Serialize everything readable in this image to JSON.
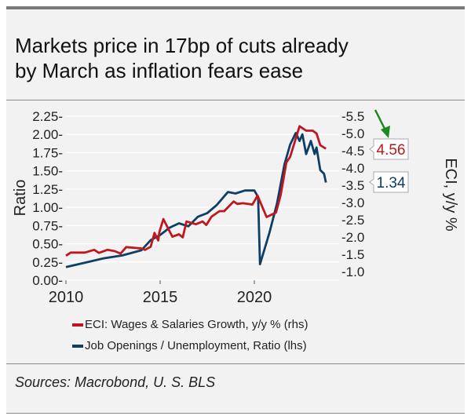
{
  "title_line1": "Markets price in 17bp of cuts already",
  "title_line2": "by March as inflation fears ease",
  "source": "Sources: Macrobond, U. S. BLS",
  "colors": {
    "eci": "#c0171f",
    "ratio": "#0d3e66",
    "arrow": "#1e8a1e",
    "background": "#f2f2f2"
  },
  "chart_data": {
    "type": "line",
    "title": "",
    "xlabel": "",
    "ylabel_left": "Ratio",
    "ylabel_right": "ECI, y/y %",
    "xlim": [
      2010,
      2024.5
    ],
    "x_ticks": [
      "2010",
      "2015",
      "2020"
    ],
    "ylim_left": [
      0,
      2.25
    ],
    "y_ticks_left": [
      "0.00",
      "0.25",
      "0.50",
      "0.75",
      "1.00",
      "1.25",
      "1.50",
      "1.75",
      "2.00",
      "2.25"
    ],
    "ylim_right": [
      0.75,
      5.5
    ],
    "y_ticks_right": [
      "1.0",
      "1.5",
      "2.0",
      "2.5",
      "3.0",
      "3.5",
      "4.0",
      "4.5",
      "5.0",
      "5.5"
    ],
    "grid": true,
    "legend_placement": "bottom",
    "series": [
      {
        "name": "ECI: Wages & Salaries Growth, y/y % (rhs)",
        "axis": "right",
        "last_label": "4.56",
        "x": [
          2010.0,
          2010.25,
          2011.0,
          2011.5,
          2011.75,
          2012.2,
          2012.6,
          2012.9,
          2013.2,
          2014.0,
          2014.5,
          2014.9,
          2015.1,
          2014.2,
          2014.7,
          2014.96,
          2015.17,
          2015.65,
          2016.0,
          2016.2,
          2016.4,
          2016.9,
          2017.25,
          2017.45,
          2017.73,
          2018.15,
          2018.4,
          2018.9,
          2019.1,
          2019.4,
          2019.9,
          2020.17,
          2020.65,
          2021.15,
          2021.4,
          2021.7,
          2021.9,
          2022.4,
          2022.75,
          2023.1,
          2023.3,
          2023.5,
          2023.7,
          2023.8
        ],
        "values": [
          1.46,
          1.55,
          1.55,
          1.63,
          1.54,
          1.63,
          1.59,
          1.52,
          1.71,
          1.67,
          1.72,
          1.9,
          1.9,
          1.63,
          2.12,
          2.14,
          2.52,
          2.01,
          2.08,
          1.99,
          2.45,
          2.37,
          2.45,
          2.35,
          2.59,
          2.75,
          2.75,
          3.03,
          2.96,
          2.98,
          2.94,
          3.2,
          2.58,
          2.71,
          3.22,
          4.16,
          4.32,
          5.21,
          5.08,
          5.08,
          5.0,
          4.66,
          4.59,
          4.56
        ]
      },
      {
        "name": "Job Openings / Unemployment, Ratio (lhs)",
        "axis": "left",
        "last_label": "1.34",
        "x": [
          2010.0,
          2011.0,
          2012.0,
          2013.0,
          2014.0,
          2014.5,
          2015.0,
          2015.5,
          2016.0,
          2016.5,
          2017.0,
          2017.5,
          2018.0,
          2018.6,
          2019.0,
          2019.5,
          2020.0,
          2020.2,
          2020.3,
          2020.8,
          2021.2,
          2021.6,
          2021.9,
          2022.2,
          2022.4,
          2022.55,
          2022.75,
          2023.0,
          2023.2,
          2023.3,
          2023.5,
          2023.7,
          2023.8
        ],
        "values": [
          0.18,
          0.24,
          0.3,
          0.34,
          0.41,
          0.55,
          0.62,
          0.72,
          0.78,
          0.74,
          0.87,
          0.92,
          1.03,
          1.21,
          1.19,
          1.23,
          1.23,
          1.14,
          0.22,
          0.65,
          1.05,
          1.59,
          1.86,
          2.02,
          1.91,
          2.0,
          1.73,
          1.91,
          1.73,
          1.82,
          1.51,
          1.46,
          1.34
        ]
      }
    ]
  }
}
